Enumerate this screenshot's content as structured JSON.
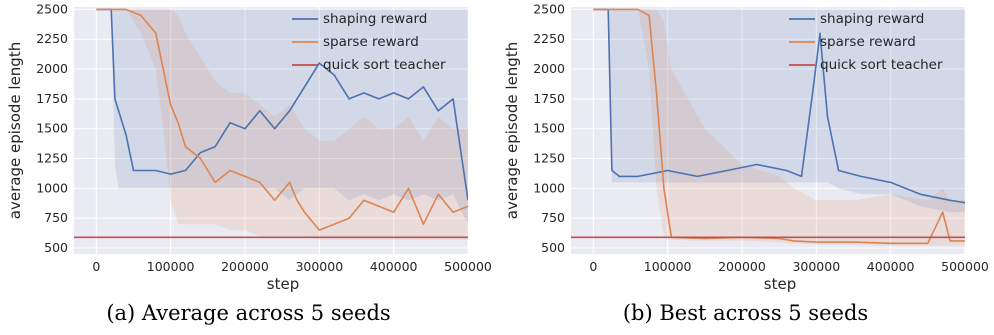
{
  "chart_data": [
    {
      "type": "line",
      "title": "",
      "caption": "(a) Average across 5 seeds",
      "xlabel": "step",
      "ylabel": "average episode length",
      "xlim": [
        0,
        500000
      ],
      "ylim": [
        450,
        2520
      ],
      "x_ticks": [
        0,
        100000,
        200000,
        300000,
        400000,
        500000
      ],
      "y_ticks": [
        500,
        750,
        1000,
        1250,
        1500,
        1750,
        2000,
        2250,
        2500
      ],
      "grid": true,
      "legend_position": "top-right",
      "series": [
        {
          "name": "shaping reward",
          "color": "#4c72b0",
          "x": [
            0,
            20000,
            25000,
            30000,
            40000,
            50000,
            60000,
            80000,
            100000,
            120000,
            140000,
            160000,
            180000,
            200000,
            220000,
            240000,
            260000,
            280000,
            300000,
            320000,
            340000,
            360000,
            380000,
            400000,
            420000,
            440000,
            460000,
            480000,
            500000
          ],
          "y": [
            2500,
            2500,
            1750,
            1650,
            1450,
            1150,
            1150,
            1150,
            1120,
            1150,
            1300,
            1350,
            1550,
            1500,
            1650,
            1500,
            1650,
            1850,
            2050,
            1950,
            1750,
            1800,
            1750,
            1800,
            1750,
            1850,
            1650,
            1750,
            900
          ],
          "band_upper": [
            2500,
            2500,
            2500,
            2500,
            2500,
            2500,
            2500,
            2500,
            2500,
            2500,
            2500,
            2500,
            2500,
            2500,
            2500,
            2500,
            2500,
            2500,
            2500,
            2500,
            2500,
            2500,
            2500,
            2500,
            2500,
            2500,
            2500,
            2500,
            2500
          ],
          "band_lower": [
            2500,
            2500,
            1200,
            1000,
            1000,
            1000,
            1000,
            1000,
            1000,
            1000,
            1000,
            1000,
            1000,
            1000,
            1000,
            1000,
            900,
            1000,
            1000,
            1000,
            900,
            950,
            900,
            950,
            900,
            950,
            900,
            950,
            700
          ]
        },
        {
          "name": "sparse reward",
          "color": "#dd8452",
          "x": [
            0,
            40000,
            60000,
            80000,
            90000,
            100000,
            110000,
            120000,
            140000,
            160000,
            180000,
            200000,
            220000,
            240000,
            260000,
            270000,
            280000,
            300000,
            320000,
            340000,
            360000,
            380000,
            400000,
            420000,
            440000,
            460000,
            480000,
            500000
          ],
          "y": [
            2500,
            2500,
            2450,
            2300,
            2000,
            1700,
            1550,
            1350,
            1250,
            1050,
            1150,
            1100,
            1050,
            900,
            1050,
            900,
            800,
            650,
            700,
            750,
            900,
            850,
            800,
            1000,
            700,
            950,
            800,
            850
          ],
          "band_upper": [
            2500,
            2500,
            2500,
            2500,
            2500,
            2500,
            2450,
            2300,
            2100,
            1900,
            1800,
            1800,
            1700,
            1600,
            1700,
            1600,
            1500,
            1400,
            1400,
            1500,
            1600,
            1500,
            1500,
            1600,
            1400,
            1600,
            1500,
            1500
          ],
          "band_lower": [
            2500,
            2500,
            2300,
            2000,
            1500,
            900,
            700,
            700,
            700,
            700,
            650,
            650,
            600,
            600,
            600,
            600,
            600,
            570,
            570,
            570,
            570,
            570,
            570,
            570,
            570,
            570,
            570,
            570
          ]
        },
        {
          "name": "quick sort teacher",
          "color": "#c44e52",
          "x": [
            -30000,
            500000
          ],
          "y": [
            590,
            590
          ]
        }
      ]
    },
    {
      "type": "line",
      "title": "",
      "caption": "(b) Best across 5 seeds",
      "xlabel": "step",
      "ylabel": "average episode length",
      "xlim": [
        0,
        500000
      ],
      "ylim": [
        450,
        2520
      ],
      "x_ticks": [
        0,
        100000,
        200000,
        300000,
        400000,
        500000
      ],
      "y_ticks": [
        500,
        750,
        1000,
        1250,
        1500,
        1750,
        2000,
        2250,
        2500
      ],
      "grid": true,
      "legend_position": "top-right",
      "series": [
        {
          "name": "shaping reward",
          "color": "#4c72b0",
          "x": [
            0,
            20000,
            25000,
            35000,
            60000,
            100000,
            140000,
            180000,
            220000,
            260000,
            280000,
            295000,
            305000,
            315000,
            330000,
            360000,
            400000,
            440000,
            480000,
            500000
          ],
          "y": [
            2500,
            2500,
            1150,
            1100,
            1100,
            1150,
            1100,
            1150,
            1200,
            1150,
            1100,
            1800,
            2300,
            1600,
            1150,
            1100,
            1050,
            950,
            900,
            880
          ],
          "band_upper": [
            2500,
            2500,
            2500,
            2500,
            2500,
            2500,
            2500,
            2500,
            2500,
            2500,
            2500,
            2500,
            2500,
            2500,
            2500,
            2500,
            2500,
            2500,
            2500,
            2500
          ],
          "band_lower": [
            2500,
            2500,
            1050,
            1050,
            1050,
            1050,
            1050,
            1050,
            1050,
            1050,
            1050,
            1050,
            1050,
            1050,
            1000,
            950,
            950,
            850,
            800,
            800
          ]
        },
        {
          "name": "sparse reward",
          "color": "#dd8452",
          "x": [
            0,
            60000,
            75000,
            85000,
            95000,
            105000,
            150000,
            200000,
            250000,
            270000,
            300000,
            350000,
            400000,
            450000,
            470000,
            480000,
            500000
          ],
          "y": [
            2500,
            2500,
            2450,
            1800,
            1000,
            590,
            580,
            590,
            580,
            560,
            550,
            550,
            540,
            540,
            800,
            560,
            560
          ],
          "band_upper": [
            2500,
            2500,
            2500,
            2500,
            2400,
            2000,
            1500,
            1200,
            1100,
            1000,
            900,
            900,
            950,
            900,
            1000,
            900,
            900
          ],
          "band_lower": [
            2500,
            2500,
            2000,
            1000,
            600,
            570,
            560,
            560,
            550,
            540,
            530,
            530,
            520,
            520,
            520,
            520,
            520
          ]
        },
        {
          "name": "quick sort teacher",
          "color": "#c44e52",
          "x": [
            -30000,
            500000
          ],
          "y": [
            590,
            590
          ]
        }
      ]
    }
  ]
}
